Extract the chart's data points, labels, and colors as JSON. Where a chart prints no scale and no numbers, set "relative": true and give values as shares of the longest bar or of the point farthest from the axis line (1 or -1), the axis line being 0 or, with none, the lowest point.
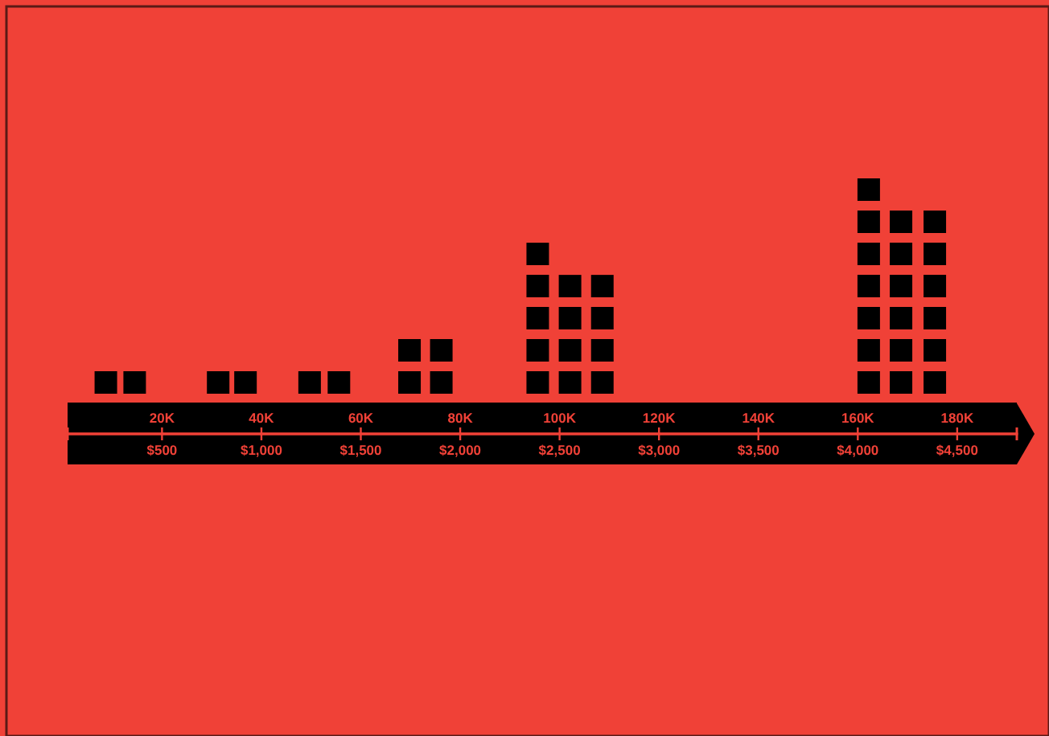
{
  "chart_data": {
    "type": "bar",
    "relative": true,
    "x": [
      8.7,
      14.5,
      31.3,
      36.8,
      49.7,
      55.6,
      69.8,
      76.2,
      95.6,
      102.1,
      108.6,
      162.2,
      168.7,
      175.5
    ],
    "xlim": [
      1,
      192
    ],
    "xticks": [
      {
        "value": 20,
        "label": "20K"
      },
      {
        "value": 40,
        "label": "40K"
      },
      {
        "value": 60,
        "label": "60K"
      },
      {
        "value": 80,
        "label": "80K"
      },
      {
        "value": 100,
        "label": "100K"
      },
      {
        "value": 120,
        "label": "120K"
      },
      {
        "value": 140,
        "label": "140K"
      },
      {
        "value": 160,
        "label": "160K"
      },
      {
        "value": 180,
        "label": "180K"
      }
    ],
    "x2lim": [
      25,
      4800
    ],
    "x2ticks": [
      {
        "value": 500,
        "label": "$500"
      },
      {
        "value": 1000,
        "label": "$1,000"
      },
      {
        "value": 1500,
        "label": "$1,500"
      },
      {
        "value": 2000,
        "label": "$2,000"
      },
      {
        "value": 2500,
        "label": "$2,500"
      },
      {
        "value": 3000,
        "label": "$3,000"
      },
      {
        "value": 3500,
        "label": "$3,500"
      },
      {
        "value": 4000,
        "label": "$4,000"
      },
      {
        "value": 4500,
        "label": "$4,500"
      }
    ],
    "color": "#000000",
    "values": [
      0.143,
      0.143,
      0.143,
      0.143,
      0.143,
      0.143,
      0.286,
      0.286,
      0.714,
      0.571,
      0.571,
      1,
      0.857,
      0.857
    ]
  }
}
